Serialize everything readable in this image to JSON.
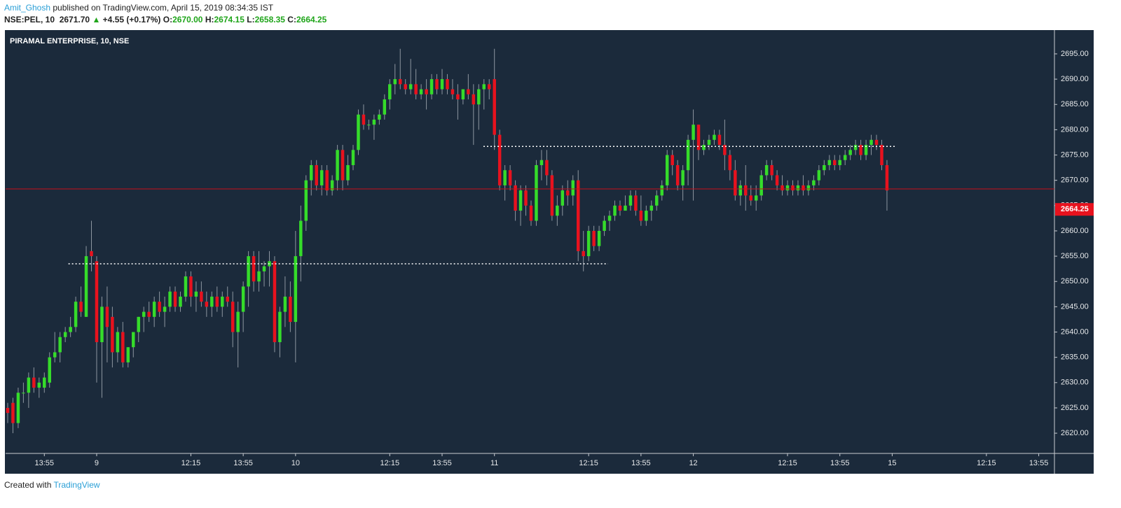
{
  "header": {
    "author": "Amit_Ghosh",
    "published": "published on TradingView.com, April 15, 2019 08:34:35 IST",
    "symbol": "NSE:PEL, 10",
    "price": "2671.70",
    "arrow": "▲",
    "change": "+4.55 (+0.17%)",
    "o_label": "O:",
    "open": "2670.00",
    "h_label": "H:",
    "high": "2674.15",
    "l_label": "L:",
    "low": "2658.35",
    "c_label": "C:",
    "close": "2664.25"
  },
  "footer": {
    "created": "Created with",
    "brand": "TradingView"
  },
  "chart_data": {
    "type": "candlestick",
    "title": "PIRAMAL ENTERPRISE, 10, NSE",
    "background": "#1b2a3b",
    "up_color": "#35dc2a",
    "down_color": "#e8121e",
    "xlim": [
      -17.4,
      183
    ],
    "ylim": [
      2616,
      2699.7
    ],
    "xticks": [
      {
        "value": -10,
        "label": "13:55"
      },
      {
        "value": 0,
        "label": "9"
      },
      {
        "value": 18,
        "label": "12:15"
      },
      {
        "value": 28,
        "label": "13:55"
      },
      {
        "value": 38,
        "label": "10"
      },
      {
        "value": 56,
        "label": "12:15"
      },
      {
        "value": 66,
        "label": "13:55"
      },
      {
        "value": 76,
        "label": "11"
      },
      {
        "value": 94,
        "label": "12:15"
      },
      {
        "value": 104,
        "label": "13:55"
      },
      {
        "value": 114,
        "label": "12"
      },
      {
        "value": 132,
        "label": "12:15"
      },
      {
        "value": 142,
        "label": "13:55"
      },
      {
        "value": 152,
        "label": "15"
      },
      {
        "value": 170,
        "label": "12:15"
      },
      {
        "value": 180,
        "label": "13:55"
      }
    ],
    "yticks": [
      {
        "value": 2620,
        "label": "2620.00"
      },
      {
        "value": 2625,
        "label": "2625.00"
      },
      {
        "value": 2630,
        "label": "2630.00"
      },
      {
        "value": 2635,
        "label": "2635.00"
      },
      {
        "value": 2640,
        "label": "2640.00"
      },
      {
        "value": 2645,
        "label": "2645.00"
      },
      {
        "value": 2650,
        "label": "2650.00"
      },
      {
        "value": 2655,
        "label": "2655.00"
      },
      {
        "value": 2660,
        "label": "2660.00"
      },
      {
        "value": 2665,
        "label": "2665.00"
      },
      {
        "value": 2670,
        "label": "2670.00"
      },
      {
        "value": 2675,
        "label": "2675.00"
      },
      {
        "value": 2680,
        "label": "2680.00"
      },
      {
        "value": 2685,
        "label": "2685.00"
      },
      {
        "value": 2690,
        "label": "2690.00"
      },
      {
        "value": 2695,
        "label": "2695.00"
      }
    ],
    "price_line": 2668.3,
    "price_line_color": "#c8101a",
    "last_price": {
      "value": 2664.25,
      "label": "2664.25"
    },
    "levels": [
      {
        "value": 2653.5,
        "from": -5.4,
        "to": 97.7
      },
      {
        "value": 2676.7,
        "from": 73.9,
        "to": 152.6
      }
    ],
    "x": [
      -17,
      -16,
      -15,
      -14,
      -13,
      -12,
      -11,
      -10,
      -9,
      -8,
      -7,
      -6,
      -5,
      -4,
      -3,
      -2,
      -1,
      0,
      1,
      2,
      3,
      4,
      5,
      6,
      7,
      8,
      9,
      10,
      11,
      12,
      13,
      14,
      15,
      16,
      17,
      18,
      19,
      20,
      21,
      22,
      23,
      24,
      25,
      26,
      27,
      28,
      29,
      30,
      31,
      32,
      33,
      34,
      35,
      36,
      37,
      38,
      39,
      40,
      41,
      42,
      43,
      44,
      45,
      46,
      47,
      48,
      49,
      50,
      51,
      52,
      53,
      54,
      55,
      56,
      57,
      58,
      59,
      60,
      61,
      62,
      63,
      64,
      65,
      66,
      67,
      68,
      69,
      70,
      71,
      72,
      73,
      74,
      75,
      76,
      77,
      78,
      79,
      80,
      81,
      82,
      83,
      84,
      85,
      86,
      87,
      88,
      89,
      90,
      91,
      92,
      93,
      94,
      95,
      96,
      97,
      98,
      99,
      100,
      101,
      102,
      103,
      104,
      105,
      106,
      107,
      108,
      109,
      110,
      111,
      112,
      113,
      114,
      115,
      116,
      117,
      118,
      119,
      120,
      121,
      122,
      123,
      124,
      125,
      126,
      127,
      128,
      129,
      130,
      131,
      132,
      133,
      134,
      135,
      136,
      137,
      138,
      139,
      140,
      141,
      142,
      143,
      144,
      145,
      146,
      147,
      148,
      149,
      150,
      151
    ],
    "ohlc": [
      [
        2625,
        2626,
        2622,
        2624
      ],
      [
        2626,
        2627,
        2620,
        2622
      ],
      [
        2622,
        2629,
        2621,
        2628
      ],
      [
        2628,
        2630,
        2626,
        2628
      ],
      [
        2628,
        2632,
        2625,
        2631
      ],
      [
        2631,
        2633,
        2628,
        2629
      ],
      [
        2629,
        2631,
        2627,
        2630
      ],
      [
        2629,
        2632,
        2628,
        2631
      ],
      [
        2630,
        2636,
        2629,
        2635
      ],
      [
        2635,
        2640,
        2634,
        2636
      ],
      [
        2636,
        2640,
        2634,
        2639
      ],
      [
        2639,
        2641,
        2638,
        2640
      ],
      [
        2640,
        2643,
        2639,
        2641
      ],
      [
        2641,
        2647,
        2640,
        2646
      ],
      [
        2646,
        2649,
        2643,
        2644
      ],
      [
        2643,
        2657,
        2643,
        2655
      ],
      [
        2656,
        2662,
        2652,
        2655
      ],
      [
        2654,
        2655,
        2630,
        2638
      ],
      [
        2638,
        2647,
        2627,
        2645
      ],
      [
        2645,
        2649,
        2634,
        2641
      ],
      [
        2643,
        2645,
        2633,
        2636
      ],
      [
        2636,
        2641,
        2634,
        2640
      ],
      [
        2640,
        2642,
        2633,
        2634
      ],
      [
        2634,
        2637,
        2633,
        2637
      ],
      [
        2637,
        2640,
        2635,
        2640
      ],
      [
        2640,
        2643,
        2638,
        2643
      ],
      [
        2643,
        2645,
        2640,
        2644
      ],
      [
        2644,
        2646,
        2642,
        2643
      ],
      [
        2643,
        2647,
        2641,
        2646
      ],
      [
        2646,
        2648,
        2643,
        2644
      ],
      [
        2644,
        2647,
        2641,
        2645
      ],
      [
        2645,
        2649,
        2644,
        2648
      ],
      [
        2648,
        2649,
        2644,
        2645
      ],
      [
        2645,
        2648,
        2644,
        2647
      ],
      [
        2647,
        2652,
        2646,
        2651
      ],
      [
        2651,
        2652,
        2645,
        2647
      ],
      [
        2647,
        2650,
        2644,
        2648
      ],
      [
        2648,
        2650,
        2645,
        2646
      ],
      [
        2646,
        2648,
        2643,
        2645
      ],
      [
        2645,
        2648,
        2643,
        2647
      ],
      [
        2647,
        2649,
        2644,
        2645
      ],
      [
        2645,
        2648,
        2643,
        2647
      ],
      [
        2647,
        2649,
        2645,
        2646
      ],
      [
        2646,
        2648,
        2637,
        2640
      ],
      [
        2640,
        2646,
        2633,
        2644
      ],
      [
        2644,
        2650,
        2640,
        2649
      ],
      [
        2649,
        2656,
        2645,
        2655
      ],
      [
        2655,
        2656,
        2648,
        2650
      ],
      [
        2650,
        2656,
        2648,
        2652
      ],
      [
        2652,
        2654,
        2649,
        2653
      ],
      [
        2653,
        2656,
        2649,
        2654
      ],
      [
        2654,
        2655,
        2636,
        2638
      ],
      [
        2638,
        2645,
        2635,
        2644
      ],
      [
        2644,
        2651,
        2641,
        2647
      ],
      [
        2647,
        2650,
        2640,
        2642
      ],
      [
        2642,
        2660,
        2634,
        2655
      ],
      [
        2655,
        2665,
        2650,
        2662
      ],
      [
        2662,
        2671,
        2660,
        2670
      ],
      [
        2670,
        2674,
        2667,
        2673
      ],
      [
        2673,
        2674,
        2668,
        2669
      ],
      [
        2669,
        2673,
        2667,
        2672
      ],
      [
        2672,
        2673,
        2667,
        2668
      ],
      [
        2668,
        2671,
        2667,
        2670
      ],
      [
        2670,
        2677,
        2668,
        2676
      ],
      [
        2676,
        2677,
        2668,
        2670
      ],
      [
        2670,
        2675,
        2669,
        2673
      ],
      [
        2673,
        2677,
        2672,
        2676
      ],
      [
        2676,
        2684,
        2675,
        2683
      ],
      [
        2683,
        2685,
        2680,
        2681
      ],
      [
        2681,
        2682,
        2680,
        2681
      ],
      [
        2681,
        2683,
        2678,
        2682
      ],
      [
        2682,
        2684,
        2681,
        2683
      ],
      [
        2683,
        2687,
        2682,
        2686
      ],
      [
        2686,
        2690,
        2684,
        2689
      ],
      [
        2689,
        2693,
        2687,
        2690
      ],
      [
        2690,
        2696,
        2688,
        2689
      ],
      [
        2689,
        2690,
        2687,
        2688
      ],
      [
        2688,
        2694,
        2687,
        2689
      ],
      [
        2689,
        2692,
        2686,
        2687
      ],
      [
        2687,
        2689,
        2686,
        2688
      ],
      [
        2688,
        2690,
        2684,
        2687
      ],
      [
        2687,
        2691,
        2686,
        2690
      ],
      [
        2690,
        2691,
        2687,
        2688
      ],
      [
        2688,
        2692,
        2687,
        2690
      ],
      [
        2690,
        2691,
        2687,
        2688
      ],
      [
        2688,
        2690,
        2686,
        2687
      ],
      [
        2687,
        2689,
        2682,
        2686
      ],
      [
        2686,
        2688,
        2685,
        2688
      ],
      [
        2688,
        2691,
        2686,
        2687
      ],
      [
        2687,
        2689,
        2677,
        2685
      ],
      [
        2685,
        2689,
        2680,
        2688
      ],
      [
        2688,
        2690,
        2684,
        2689
      ],
      [
        2689,
        2690,
        2686,
        2688
      ],
      [
        2690,
        2696,
        2676,
        2679
      ],
      [
        2679,
        2680,
        2668,
        2669
      ],
      [
        2669,
        2673,
        2666,
        2672
      ],
      [
        2672,
        2673,
        2668,
        2669
      ],
      [
        2669,
        2670,
        2662,
        2664
      ],
      [
        2664,
        2669,
        2661,
        2668
      ],
      [
        2668,
        2669,
        2663,
        2665
      ],
      [
        2665,
        2666,
        2661,
        2662
      ],
      [
        2662,
        2674,
        2661,
        2673
      ],
      [
        2673,
        2676,
        2670,
        2674
      ],
      [
        2674,
        2676,
        2669,
        2671
      ],
      [
        2671,
        2672,
        2662,
        2663
      ],
      [
        2663,
        2667,
        2661,
        2665
      ],
      [
        2665,
        2669,
        2663,
        2668
      ],
      [
        2668,
        2670,
        2665,
        2667
      ],
      [
        2667,
        2671,
        2665,
        2670
      ],
      [
        2670,
        2672,
        2654,
        2656
      ],
      [
        2656,
        2660,
        2652,
        2655
      ],
      [
        2655,
        2661,
        2654,
        2660
      ],
      [
        2660,
        2661,
        2656,
        2657
      ],
      [
        2657,
        2661,
        2656,
        2660
      ],
      [
        2660,
        2663,
        2659,
        2662
      ],
      [
        2662,
        2664,
        2660,
        2663
      ],
      [
        2663,
        2666,
        2662,
        2665
      ],
      [
        2665,
        2666,
        2663,
        2664
      ],
      [
        2664,
        2667,
        2664,
        2665
      ],
      [
        2665,
        2668,
        2664,
        2667
      ],
      [
        2667,
        2668,
        2663,
        2664
      ],
      [
        2664,
        2667,
        2661,
        2662
      ],
      [
        2662,
        2665,
        2661,
        2664
      ],
      [
        2664,
        2666,
        2662,
        2665
      ],
      [
        2665,
        2668,
        2664,
        2667
      ],
      [
        2667,
        2670,
        2666,
        2669
      ],
      [
        2669,
        2676,
        2668,
        2675
      ],
      [
        2675,
        2676,
        2671,
        2673
      ],
      [
        2673,
        2674,
        2668,
        2669
      ],
      [
        2669,
        2673,
        2666,
        2672
      ],
      [
        2672,
        2679,
        2669,
        2678
      ],
      [
        2678,
        2684,
        2666,
        2681
      ],
      [
        2681,
        2681,
        2674,
        2676
      ],
      [
        2676,
        2678,
        2675,
        2677
      ],
      [
        2677,
        2679,
        2676,
        2678
      ],
      [
        2678,
        2680,
        2677,
        2679
      ],
      [
        2679,
        2680,
        2676,
        2677
      ],
      [
        2677,
        2682,
        2672,
        2675
      ],
      [
        2675,
        2676,
        2670,
        2672
      ],
      [
        2672,
        2674,
        2666,
        2667
      ],
      [
        2667,
        2670,
        2665,
        2669
      ],
      [
        2669,
        2673,
        2664,
        2667
      ],
      [
        2667,
        2669,
        2665,
        2666
      ],
      [
        2666,
        2669,
        2664,
        2667
      ],
      [
        2667,
        2672,
        2666,
        2671
      ],
      [
        2671,
        2674,
        2670,
        2673
      ],
      [
        2673,
        2674,
        2670,
        2671
      ],
      [
        2671,
        2672,
        2668,
        2669
      ],
      [
        2669,
        2671,
        2667,
        2668
      ],
      [
        2668,
        2670,
        2667,
        2669
      ],
      [
        2669,
        2670,
        2667,
        2668
      ],
      [
        2668,
        2670,
        2667,
        2669
      ],
      [
        2669,
        2671,
        2667,
        2668
      ],
      [
        2668,
        2670,
        2667,
        2669
      ],
      [
        2669,
        2671,
        2668,
        2670
      ],
      [
        2670,
        2673,
        2669,
        2672
      ],
      [
        2672,
        2674,
        2671,
        2673
      ],
      [
        2673,
        2675,
        2672,
        2674
      ],
      [
        2674,
        2675,
        2672,
        2673
      ],
      [
        2673,
        2675,
        2672,
        2674
      ],
      [
        2674,
        2676,
        2673,
        2675
      ],
      [
        2675,
        2677,
        2674,
        2676
      ],
      [
        2676,
        2678,
        2675,
        2677
      ],
      [
        2677,
        2678,
        2674,
        2675
      ],
      [
        2675,
        2678,
        2674,
        2677
      ],
      [
        2677,
        2679,
        2675,
        2678
      ],
      [
        2678,
        2679,
        2676,
        2677
      ],
      [
        2677,
        2678,
        2672,
        2673
      ],
      [
        2673,
        2674,
        2664,
        2668
      ]
    ]
  }
}
